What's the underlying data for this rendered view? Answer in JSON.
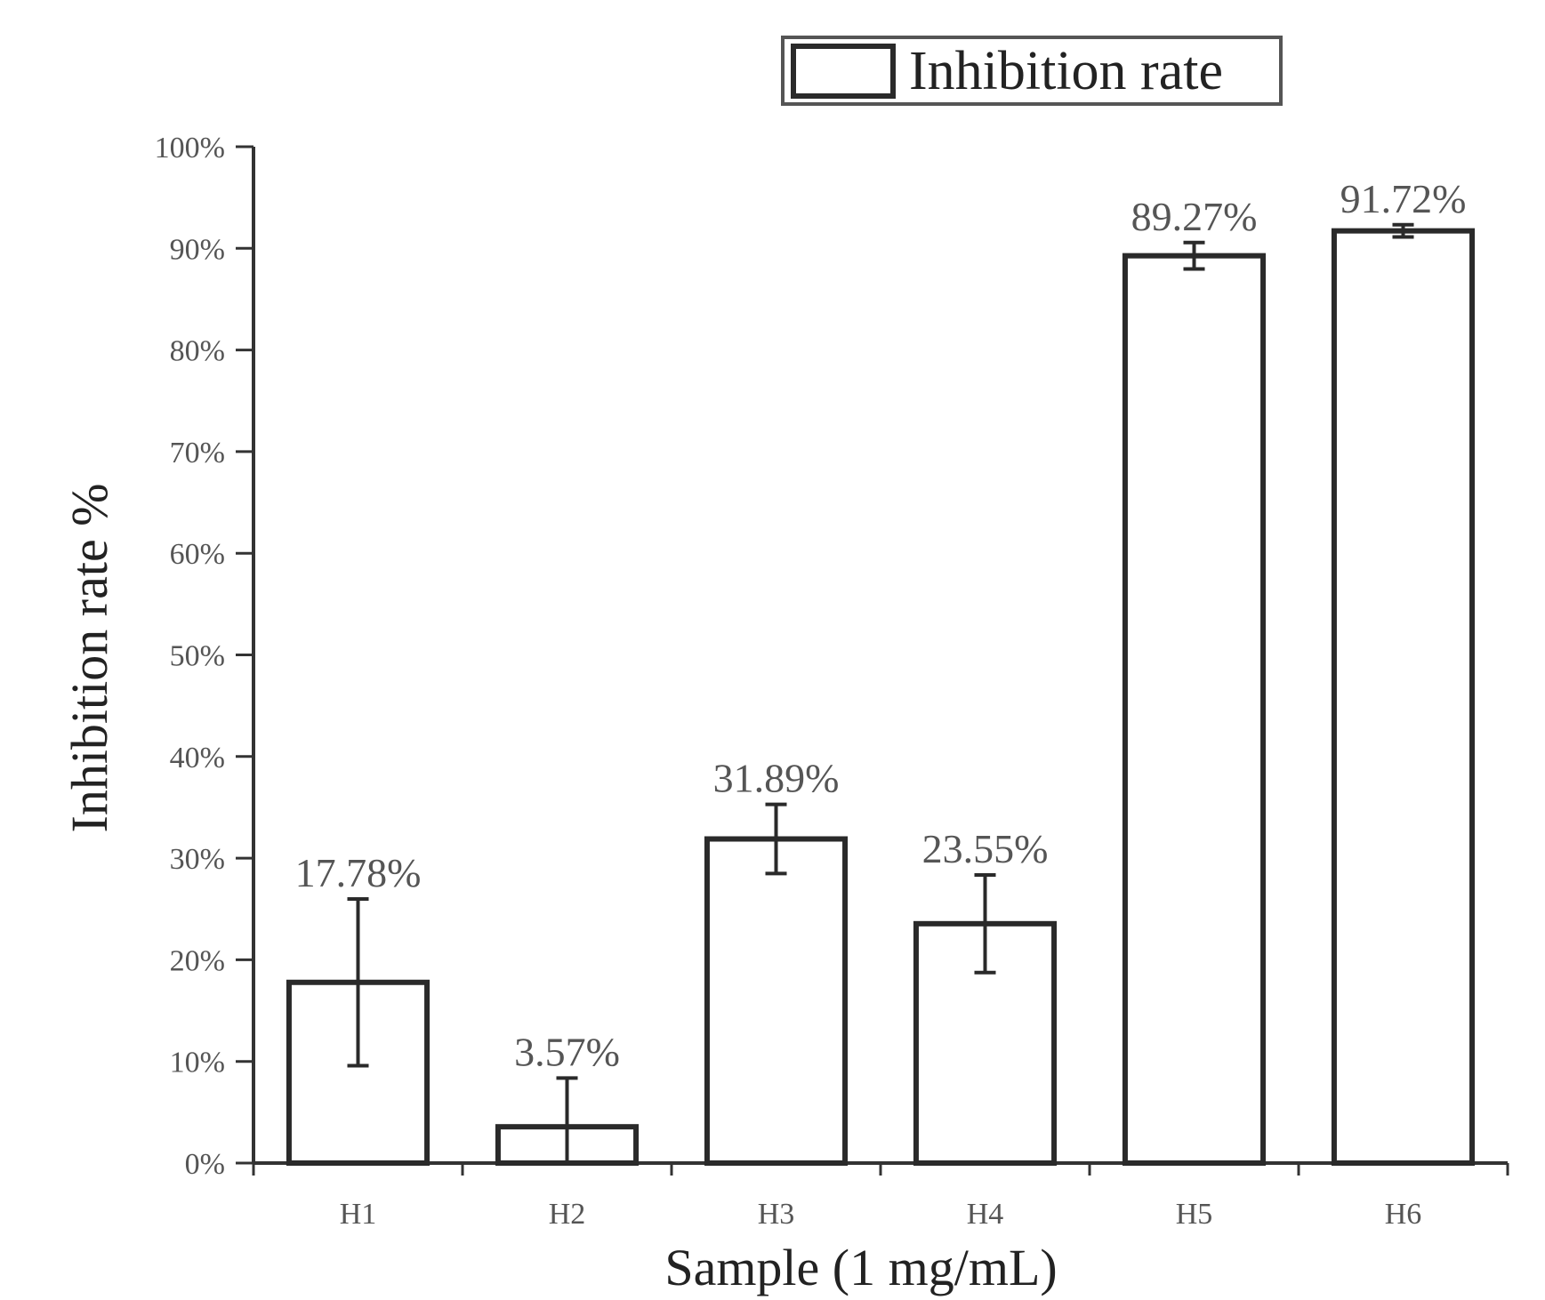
{
  "chart_data": {
    "type": "bar",
    "title": "",
    "xlabel": "Sample (1 mg/mL)",
    "ylabel": "Inhibition rate %",
    "categories": [
      "H1",
      "H2",
      "H3",
      "H4",
      "H5",
      "H6"
    ],
    "series": [
      {
        "name": "Inhibition rate",
        "values": [
          17.78,
          3.57,
          31.89,
          23.55,
          89.27,
          91.72
        ],
        "errors": [
          8.2,
          4.8,
          3.4,
          4.8,
          1.3,
          0.6
        ],
        "labels": [
          "17.78%",
          "3.57%",
          "31.89%",
          "23.55%",
          "89.27%",
          "91.72%"
        ]
      }
    ],
    "ylim": [
      0,
      100
    ],
    "yticks": [
      0,
      10,
      20,
      30,
      40,
      50,
      60,
      70,
      80,
      90,
      100
    ],
    "ytick_labels": [
      "0%",
      "10%",
      "20%",
      "30%",
      "40%",
      "50%",
      "60%",
      "70%",
      "80%",
      "90%",
      "100%"
    ],
    "legend": {
      "position": "top-right",
      "entries": [
        "Inhibition rate"
      ]
    },
    "grid": false,
    "colors": {
      "bar_fill": "#ffffff",
      "bar_stroke": "#2a2a2a",
      "axis": "#333333",
      "label": "#555555"
    }
  }
}
